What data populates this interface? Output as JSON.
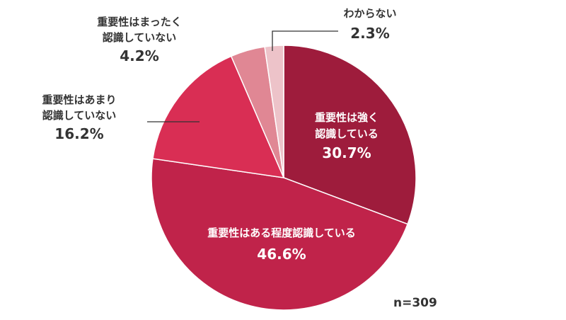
{
  "chart_data": {
    "type": "pie",
    "slices": [
      {
        "label": "重要性は強く認識している",
        "label_lines": [
          "重要性は強く",
          "認識している"
        ],
        "value": 30.7,
        "value_label": "30.7%",
        "color": "#9e1c3c"
      },
      {
        "label": "重要性はある程度認識している",
        "label_lines": [
          "重要性はある程度認識している"
        ],
        "value": 46.6,
        "value_label": "46.6%",
        "color": "#c0234a"
      },
      {
        "label": "重要性はあまり認識していない",
        "label_lines": [
          "重要性はあまり",
          "認識していない"
        ],
        "value": 16.2,
        "value_label": "16.2%",
        "color": "#d92e54"
      },
      {
        "label": "重要性はまったく認識していない",
        "label_lines": [
          "重要性はまったく",
          "認識していない"
        ],
        "value": 4.2,
        "value_label": "4.2%",
        "color": "#e08794"
      },
      {
        "label": "わからない",
        "label_lines": [
          "わからない"
        ],
        "value": 2.3,
        "value_label": "2.3%",
        "color": "#edc3c9"
      }
    ],
    "start_angle_deg": 0,
    "direction": "clockwise",
    "note": "n=309"
  }
}
